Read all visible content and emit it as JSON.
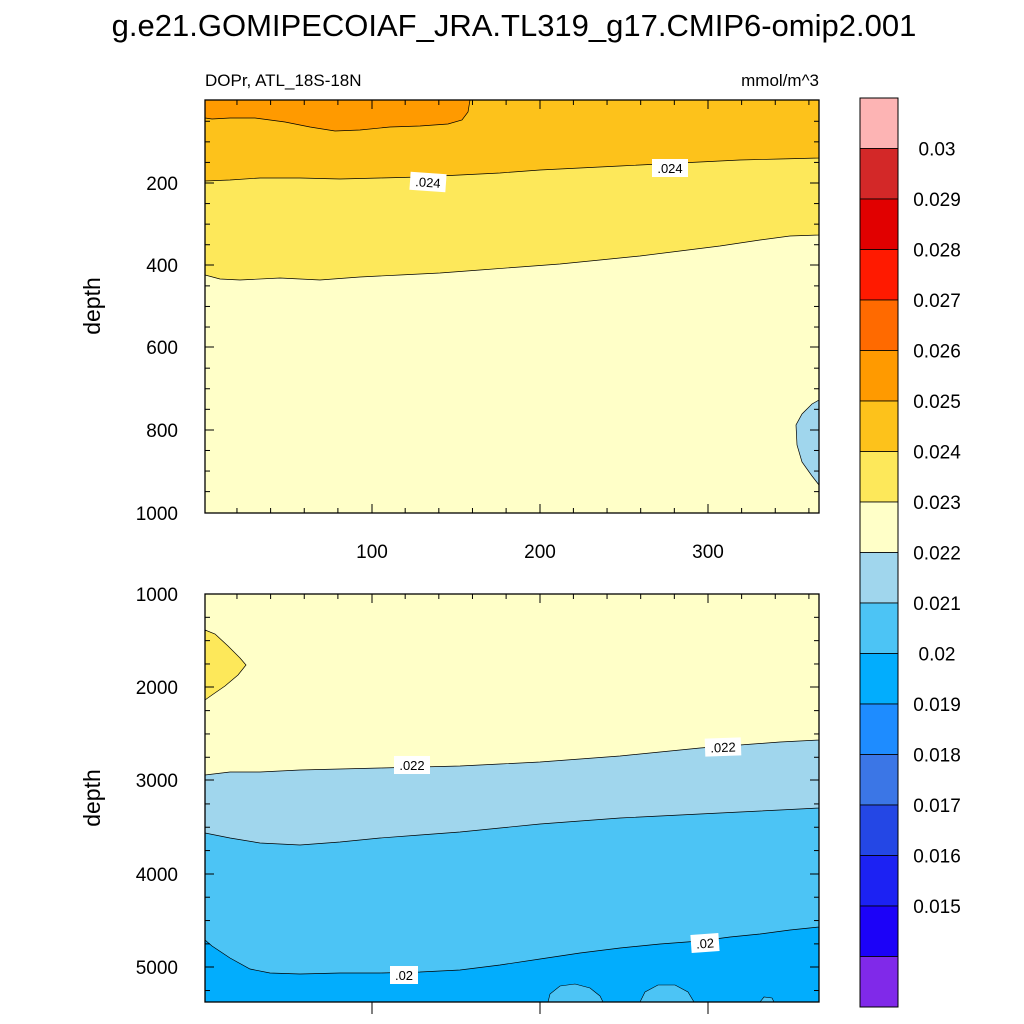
{
  "figure": {
    "title": "g.e21.GOMIPECOIAF_JRA.TL319_g17.CMIP6-omip2.001",
    "variable_label": "DOPr, ATL_18S-18N",
    "units_label": "mmol/m^3"
  },
  "chart_data": [
    {
      "type": "contour",
      "panel": "upper",
      "ylabel": "depth",
      "xlabel": "",
      "x_ticks": [
        "100",
        "200",
        "300"
      ],
      "y_ticks": [
        "200",
        "400",
        "600",
        "800",
        "1000"
      ],
      "xlim": [
        1,
        366
      ],
      "ylim": [
        5,
        1000
      ],
      "y_inverted": true,
      "contour_labels": [
        ".024",
        ".024"
      ],
      "regions": [
        {
          "band": "0.024-0.025",
          "note": "surface layer, near surface to ~190-150"
        },
        {
          "band": "0.025-0.026",
          "note": "near-surface patch, day ~1-160"
        },
        {
          "band": "0.023-0.024",
          "note": "between ~190 and ~430-320"
        },
        {
          "band": "0.022-0.023",
          "note": "below ~430-320 to 1000"
        },
        {
          "band": "0.021-0.022",
          "note": "small patch near day 360, depth ~730-940"
        }
      ]
    },
    {
      "type": "contour",
      "panel": "lower",
      "ylabel": "depth",
      "xlabel": "",
      "x_ticks": [],
      "y_ticks": [
        "1000",
        "2000",
        "3000",
        "4000",
        "5000"
      ],
      "xlim": [
        1,
        366
      ],
      "ylim": [
        1000,
        5375
      ],
      "y_inverted": true,
      "contour_labels": [
        ".022",
        ".022",
        ".02",
        ".02"
      ],
      "regions": [
        {
          "band": "0.023-0.024",
          "note": "small patch near day 1, depth ~1400-2100"
        },
        {
          "band": "0.022-0.023",
          "note": "from 1000 to ~2900-2550"
        },
        {
          "band": "0.021-0.022",
          "note": "from ~2900 to ~3600-3300"
        },
        {
          "band": "0.020-0.021",
          "note": "from ~3600 to ~5100-4600"
        },
        {
          "band": "0.019-0.020",
          "note": "bottom layer below ~5100-4600"
        }
      ]
    }
  ],
  "colorbar": {
    "colors": [
      "#fdb4b4",
      "#d32828",
      "#e10000",
      "#ff1a00",
      "#ff6a00",
      "#ff9a00",
      "#fdc21b",
      "#fde85a",
      "#ffffc8",
      "#a0d6ed",
      "#4cc4f5",
      "#02adfd",
      "#1e8cff",
      "#3b76e6",
      "#2447e5",
      "#1c22f3",
      "#1c02f8",
      "#8029e9"
    ],
    "labels": [
      "0.03",
      "0.029",
      "0.028",
      "0.027",
      "0.026",
      "0.025",
      "0.024",
      "0.023",
      "0.022",
      "0.021",
      "0.02",
      "0.019",
      "0.018",
      "0.017",
      "0.016",
      "0.015"
    ]
  }
}
